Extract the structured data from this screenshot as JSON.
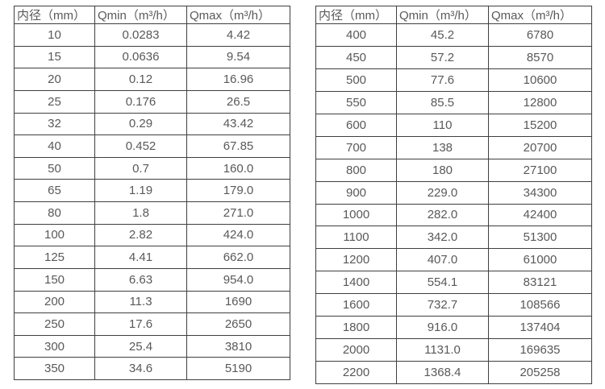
{
  "colors": {
    "text": "#595959",
    "border": "#3f3f3f",
    "background": "#ffffff"
  },
  "tables": [
    {
      "name": "small-diameter-flow-table",
      "headers": [
        "内径（mm）",
        "Qmin（m³/h）",
        "Qmax（m³/h）"
      ],
      "rows": [
        [
          "10",
          "0.0283",
          "4.42"
        ],
        [
          "15",
          "0.0636",
          "9.54"
        ],
        [
          "20",
          "0.12",
          "16.96"
        ],
        [
          "25",
          "0.176",
          "26.5"
        ],
        [
          "32",
          "0.29",
          "43.42"
        ],
        [
          "40",
          "0.452",
          "67.85"
        ],
        [
          "50",
          "0.7",
          "160.0"
        ],
        [
          "65",
          "1.19",
          "179.0"
        ],
        [
          "80",
          "1.8",
          "271.0"
        ],
        [
          "100",
          "2.82",
          "424.0"
        ],
        [
          "125",
          "4.41",
          "662.0"
        ],
        [
          "150",
          "6.63",
          "954.0"
        ],
        [
          "200",
          "11.3",
          "1690"
        ],
        [
          "250",
          "17.6",
          "2650"
        ],
        [
          "300",
          "25.4",
          "3810"
        ],
        [
          "350",
          "34.6",
          "5190"
        ]
      ]
    },
    {
      "name": "large-diameter-flow-table",
      "headers": [
        "内径（mm）",
        "Qmin（m³/h）",
        "Qmax（m³/h）"
      ],
      "rows": [
        [
          "400",
          "45.2",
          "6780"
        ],
        [
          "450",
          "57.2",
          "8570"
        ],
        [
          "500",
          "77.6",
          "10600"
        ],
        [
          "550",
          "85.5",
          "12800"
        ],
        [
          "600",
          "110",
          "15200"
        ],
        [
          "700",
          "138",
          "20700"
        ],
        [
          "800",
          "180",
          "27100"
        ],
        [
          "900",
          "229.0",
          "34300"
        ],
        [
          "1000",
          "282.0",
          "42400"
        ],
        [
          "1100",
          "342.0",
          "51300"
        ],
        [
          "1200",
          "407.0",
          "61000"
        ],
        [
          "1400",
          "554.1",
          "83121"
        ],
        [
          "1600",
          "732.7",
          "108566"
        ],
        [
          "1800",
          "916.0",
          "137404"
        ],
        [
          "2000",
          "1131.0",
          "169635"
        ],
        [
          "2200",
          "1368.4",
          "205258"
        ]
      ]
    }
  ]
}
